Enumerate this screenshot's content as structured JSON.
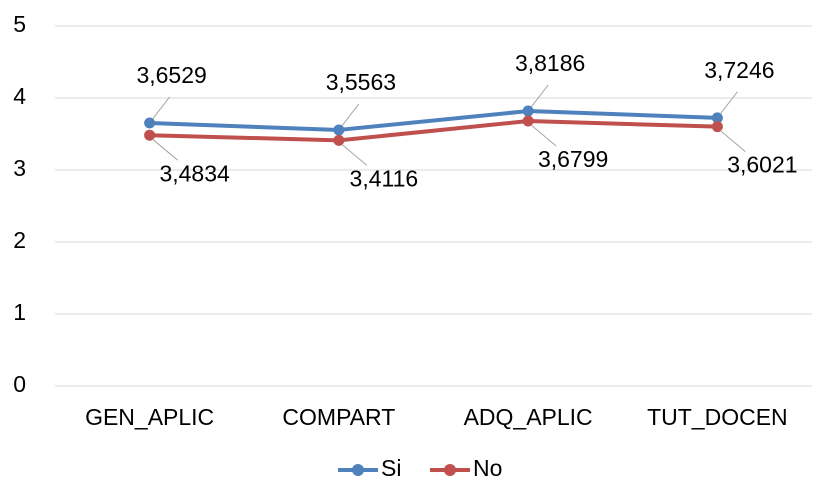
{
  "chart_data": {
    "type": "line",
    "categories": [
      "GEN_APLIC",
      "COMPART",
      "ADQ_APLIC",
      "TUT_DOCEN"
    ],
    "series": [
      {
        "name": "Si",
        "color": "#4f81bd",
        "values": [
          3.6529,
          3.5563,
          3.8186,
          3.7246
        ],
        "value_labels": [
          "3,6529",
          "3,5563",
          "3,8186",
          "3,7246"
        ]
      },
      {
        "name": "No",
        "color": "#c0504d",
        "values": [
          3.4834,
          3.4116,
          3.6799,
          3.6021
        ],
        "value_labels": [
          "3,4834",
          "3,4116",
          "3,6799",
          "3,6021"
        ]
      }
    ],
    "ylim": [
      0,
      5
    ],
    "yticks": [
      0,
      1,
      2,
      3,
      4,
      5
    ],
    "grid": true,
    "legend": "bottom"
  }
}
